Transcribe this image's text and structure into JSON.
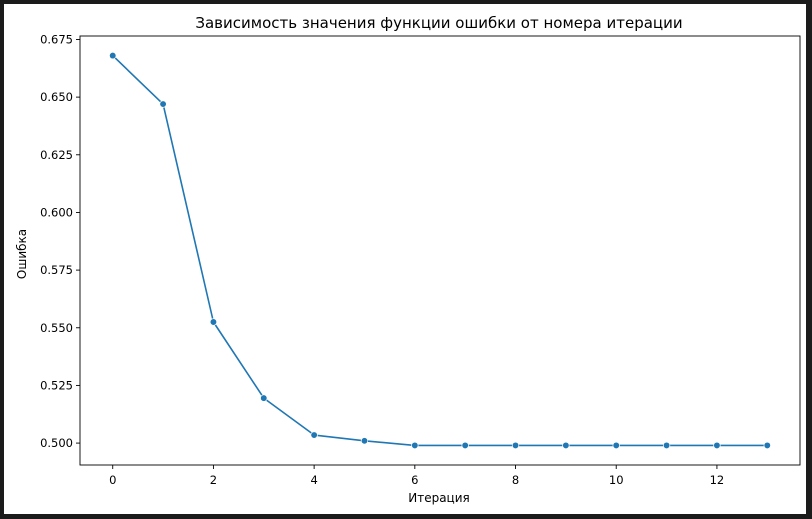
{
  "chart_data": {
    "type": "line",
    "title": "Зависимость значения функции ошибки от номера итерации",
    "xlabel": "Итерация",
    "ylabel": "Ошибка",
    "x": [
      0,
      1,
      2,
      3,
      4,
      5,
      6,
      7,
      8,
      9,
      10,
      11,
      12,
      13
    ],
    "series": [
      {
        "values": [
          0.668,
          0.647,
          0.5525,
          0.5195,
          0.5035,
          0.501,
          0.499,
          0.499,
          0.499,
          0.499,
          0.499,
          0.499,
          0.499,
          0.499
        ]
      }
    ],
    "xlim": [
      -0.65,
      13.65
    ],
    "ylim": [
      0.4905,
      0.6765
    ],
    "xticks": [
      0,
      2,
      4,
      6,
      8,
      10,
      12
    ],
    "xtick_labels": [
      "0",
      "2",
      "4",
      "6",
      "8",
      "10",
      "12"
    ],
    "yticks": [
      0.5,
      0.525,
      0.55,
      0.575,
      0.6,
      0.625,
      0.65,
      0.675
    ],
    "ytick_labels": [
      "0.500",
      "0.525",
      "0.550",
      "0.575",
      "0.600",
      "0.625",
      "0.650",
      "0.675"
    ],
    "grid": false,
    "markers": true,
    "line_color": "#1f77b4"
  }
}
